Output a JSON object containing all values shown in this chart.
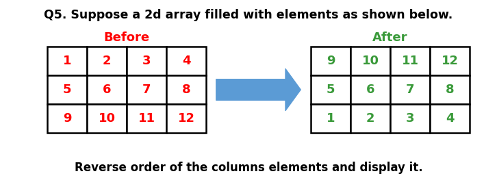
{
  "title": "Q5. Suppose a 2d array filled with elements as shown below.",
  "title_fontsize": 12.5,
  "title_fontweight": "bold",
  "before_label": "Before",
  "after_label": "After",
  "before_color": "#FF0000",
  "after_color": "#3A9A3A",
  "label_fontsize": 13,
  "before_matrix": [
    [
      "1",
      "2",
      "3",
      "4"
    ],
    [
      "5",
      "6",
      "7",
      "8"
    ],
    [
      "9",
      "10",
      "11",
      "12"
    ]
  ],
  "after_matrix": [
    [
      "9",
      "10",
      "11",
      "12"
    ],
    [
      "5",
      "6",
      "7",
      "8"
    ],
    [
      "1",
      "2",
      "3",
      "4"
    ]
  ],
  "cell_text_color_before": "#FF0000",
  "cell_text_color_after": "#3A9A3A",
  "cell_fontsize": 13,
  "footer": "Reverse order of the columns elements and display it.",
  "footer_fontsize": 12,
  "footer_fontweight": "bold",
  "arrow_color": "#5B9BD5",
  "background_color": "#FFFFFF",
  "fig_width": 7.26,
  "fig_height": 2.76,
  "dpi": 100
}
